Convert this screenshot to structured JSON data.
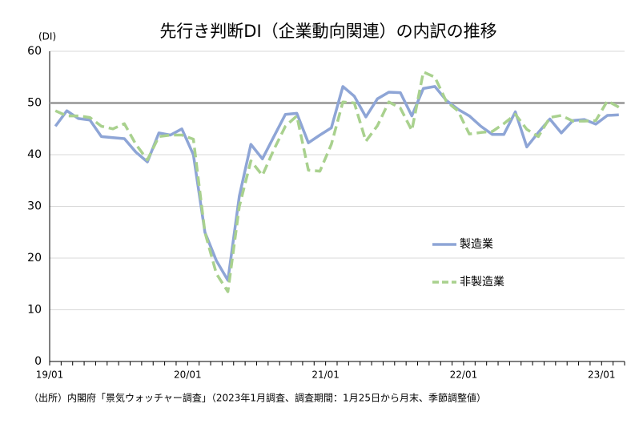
{
  "chart_data": {
    "type": "line",
    "title": "先行き判断DI（企業動向関連）の内訳の推移",
    "y_unit": "(DI)",
    "source": "（出所）内閣府「景気ウォッチャー調査」（2023年1月調査、調査期間：1月25日から月末、季節調整値）",
    "categories": [
      "19/01",
      null,
      null,
      null,
      null,
      null,
      null,
      null,
      null,
      null,
      null,
      null,
      "20/01",
      null,
      null,
      null,
      null,
      null,
      null,
      null,
      null,
      null,
      null,
      null,
      "21/01",
      null,
      null,
      null,
      null,
      null,
      null,
      null,
      null,
      null,
      null,
      null,
      "22/01",
      null,
      null,
      null,
      null,
      null,
      null,
      null,
      null,
      null,
      null,
      null,
      "23/01",
      null
    ],
    "series": [
      {
        "name": "製造業",
        "color": "#8ea5d6",
        "dash": false,
        "values": [
          45.5,
          48.5,
          47,
          46.7,
          43.5,
          43.3,
          43.1,
          40.5,
          38.6,
          44.2,
          43.8,
          45,
          40,
          25,
          19.5,
          15.7,
          32,
          42,
          39.2,
          43.5,
          47.8,
          48,
          42.3,
          43.8,
          45.2,
          53.2,
          51.3,
          47.3,
          50.8,
          52.1,
          52,
          47.5,
          52.8,
          53.2,
          50.5,
          48.8,
          47.5,
          45.5,
          43.9,
          43.9,
          48.3,
          41.5,
          44.3,
          46.9,
          44.2,
          46.6,
          46.8,
          45.9,
          47.6,
          47.7
        ]
      },
      {
        "name": "非製造業",
        "color": "#a9d18e",
        "dash": true,
        "values": [
          48.5,
          47.5,
          47.5,
          47.2,
          45.5,
          45,
          46,
          42,
          39,
          43.5,
          43.8,
          43.8,
          43,
          25,
          17,
          13.5,
          30,
          38.8,
          36,
          41,
          45.5,
          47.5,
          37,
          36.8,
          42,
          50.2,
          50,
          42.6,
          45.6,
          50.2,
          49,
          44.7,
          56,
          55,
          50.3,
          48.5,
          44,
          44.3,
          44.5,
          46,
          47.8,
          44.9,
          43.5,
          47.2,
          47.6,
          46.5,
          46.5,
          46.6,
          50.4,
          49.2
        ]
      }
    ],
    "reference_line": 50,
    "ylim": [
      0,
      60
    ],
    "yticks": [
      0,
      10,
      20,
      30,
      40,
      50,
      60
    ],
    "grid": true
  }
}
